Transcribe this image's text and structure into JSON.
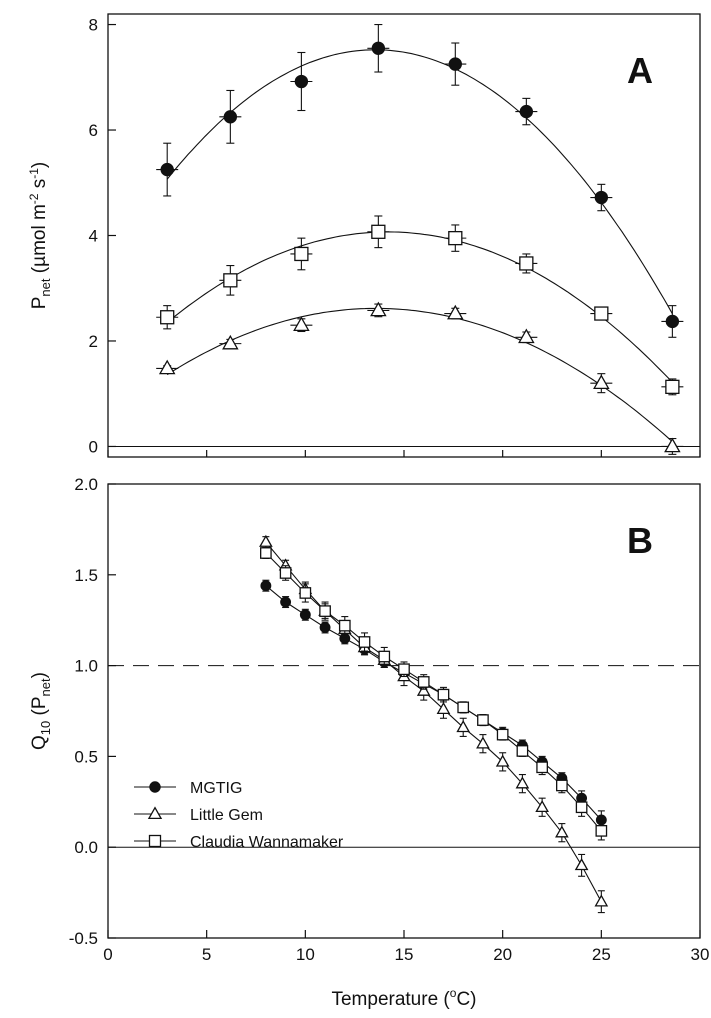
{
  "chart_data": [
    {
      "panel": "A",
      "type": "scatter",
      "panel_label": "A",
      "ylabel": "P_net (µmol m^-2 s^-1)",
      "ylabel_parts": {
        "main": "P",
        "sub": "net",
        "unit_open": " (µmol m",
        "exp1": "-2",
        "mid": " s",
        "exp2": "-1",
        "unit_close": ")"
      },
      "xlim": [
        0,
        30
      ],
      "ylim": [
        -0.2,
        8.2
      ],
      "yticks": [
        0,
        2,
        4,
        6,
        8
      ],
      "fitted_curves": true,
      "series": [
        {
          "name": "MGTIG",
          "marker": "filled-circle",
          "x": [
            3,
            6.2,
            9.8,
            13.7,
            17.6,
            21.2,
            25,
            28.6
          ],
          "y": [
            5.25,
            6.25,
            6.92,
            7.55,
            7.25,
            6.35,
            4.72,
            2.37
          ],
          "err": [
            0.5,
            0.5,
            0.55,
            0.45,
            0.4,
            0.25,
            0.25,
            0.3
          ]
        },
        {
          "name": "Little Gem",
          "marker": "open-triangle",
          "x": [
            3,
            6.2,
            9.8,
            13.7,
            17.6,
            21.2,
            25,
            28.6
          ],
          "y": [
            1.48,
            1.95,
            2.3,
            2.58,
            2.52,
            2.07,
            1.2,
            0.0
          ],
          "err": [
            0.05,
            0.08,
            0.12,
            0.12,
            0.1,
            0.1,
            0.18,
            0.15
          ]
        },
        {
          "name": "Claudia Wannamaker",
          "marker": "open-square",
          "x": [
            3,
            6.2,
            9.8,
            13.7,
            17.6,
            21.2,
            25,
            28.6
          ],
          "y": [
            2.45,
            3.15,
            3.65,
            4.07,
            3.95,
            3.47,
            2.52,
            1.13
          ],
          "err": [
            0.22,
            0.28,
            0.3,
            0.3,
            0.25,
            0.18,
            0.12,
            0.15
          ]
        }
      ]
    },
    {
      "panel": "B",
      "type": "line",
      "panel_label": "B",
      "ylabel": "Q10 (Pnet)",
      "ylabel_parts": {
        "main": "Q",
        "sub": "10",
        "open": " (P",
        "sub2": "net",
        "close": ")"
      },
      "xlabel": "Temperature (°C)",
      "xlabel_parts": {
        "main": "Temperature  (",
        "sup": "o",
        "unit": "C)"
      },
      "xlim": [
        0,
        30
      ],
      "ylim": [
        -0.5,
        2.0
      ],
      "xticks": [
        0,
        5,
        10,
        15,
        20,
        25,
        30
      ],
      "yticks": [
        -0.5,
        0.0,
        0.5,
        1.0,
        1.5,
        2.0
      ],
      "reference_lines": [
        {
          "y": 1.0,
          "style": "dashed"
        },
        {
          "y": 0.0,
          "style": "solid"
        }
      ],
      "legend_position": "bottom-left",
      "series": [
        {
          "name": "MGTIG",
          "marker": "filled-circle",
          "x": [
            8,
            9,
            10,
            11,
            12,
            13,
            14,
            15,
            16,
            17,
            18,
            19,
            20,
            21,
            22,
            23,
            24,
            25
          ],
          "y": [
            1.44,
            1.35,
            1.28,
            1.21,
            1.15,
            1.09,
            1.02,
            0.96,
            0.9,
            0.84,
            0.77,
            0.7,
            0.63,
            0.56,
            0.47,
            0.38,
            0.27,
            0.15
          ],
          "err": [
            0.03,
            0.03,
            0.03,
            0.03,
            0.03,
            0.03,
            0.03,
            0.03,
            0.03,
            0.03,
            0.03,
            0.03,
            0.03,
            0.03,
            0.03,
            0.03,
            0.04,
            0.05
          ]
        },
        {
          "name": "Little Gem",
          "marker": "open-triangle",
          "x": [
            8,
            9,
            10,
            11,
            12,
            13,
            14,
            15,
            16,
            17,
            18,
            19,
            20,
            21,
            22,
            23,
            24,
            25
          ],
          "y": [
            1.68,
            1.55,
            1.42,
            1.3,
            1.2,
            1.1,
            1.03,
            0.94,
            0.86,
            0.76,
            0.66,
            0.57,
            0.47,
            0.35,
            0.22,
            0.08,
            -0.1,
            -0.3
          ],
          "err": [
            0.03,
            0.03,
            0.04,
            0.04,
            0.04,
            0.04,
            0.04,
            0.05,
            0.05,
            0.05,
            0.05,
            0.05,
            0.05,
            0.05,
            0.05,
            0.05,
            0.06,
            0.06
          ]
        },
        {
          "name": "Claudia Wannamaker",
          "marker": "open-square",
          "x": [
            8,
            9,
            10,
            11,
            12,
            13,
            14,
            15,
            16,
            17,
            18,
            19,
            20,
            21,
            22,
            23,
            24,
            25
          ],
          "y": [
            1.62,
            1.51,
            1.4,
            1.3,
            1.22,
            1.13,
            1.05,
            0.98,
            0.91,
            0.84,
            0.77,
            0.7,
            0.62,
            0.53,
            0.44,
            0.34,
            0.22,
            0.09
          ],
          "err": [
            0.03,
            0.04,
            0.05,
            0.05,
            0.05,
            0.05,
            0.05,
            0.04,
            0.04,
            0.04,
            0.03,
            0.03,
            0.03,
            0.03,
            0.04,
            0.04,
            0.05,
            0.05
          ]
        }
      ]
    }
  ]
}
